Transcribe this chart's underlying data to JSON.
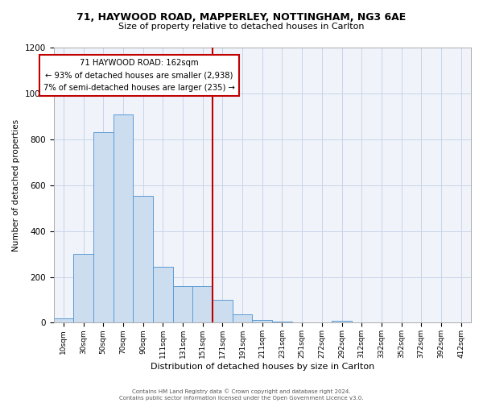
{
  "title1": "71, HAYWOOD ROAD, MAPPERLEY, NOTTINGHAM, NG3 6AE",
  "title2": "Size of property relative to detached houses in Carlton",
  "xlabel": "Distribution of detached houses by size in Carlton",
  "ylabel": "Number of detached properties",
  "bar_labels": [
    "10sqm",
    "30sqm",
    "50sqm",
    "70sqm",
    "90sqm",
    "111sqm",
    "131sqm",
    "151sqm",
    "171sqm",
    "191sqm",
    "211sqm",
    "231sqm",
    "251sqm",
    "272sqm",
    "292sqm",
    "312sqm",
    "332sqm",
    "352sqm",
    "372sqm",
    "392sqm",
    "412sqm"
  ],
  "bar_values": [
    18,
    300,
    830,
    910,
    555,
    243,
    160,
    160,
    100,
    35,
    12,
    4,
    2,
    0,
    8,
    0,
    0,
    0,
    0,
    0,
    0
  ],
  "bar_color": "#ccddf0",
  "bar_edge_color": "#5b9bd5",
  "vline_x": 8.0,
  "vline_color": "#c00000",
  "annotation_title": "71 HAYWOOD ROAD: 162sqm",
  "annotation_line1": "← 93% of detached houses are smaller (2,938)",
  "annotation_line2": "7% of semi-detached houses are larger (235) →",
  "box_color": "#c00000",
  "ylim": [
    0,
    1200
  ],
  "yticks": [
    0,
    200,
    400,
    600,
    800,
    1000,
    1200
  ],
  "footer1": "Contains HM Land Registry data © Crown copyright and database right 2024.",
  "footer2": "Contains public sector information licensed under the Open Government Licence v3.0.",
  "bg_color": "#f0f4fa"
}
